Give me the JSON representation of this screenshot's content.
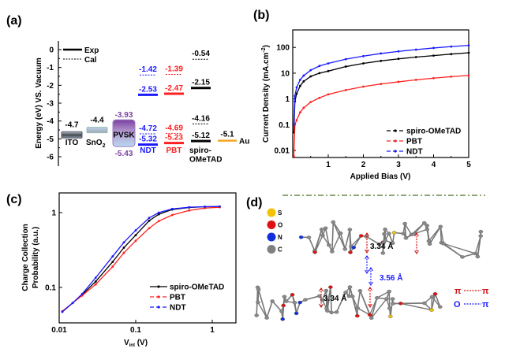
{
  "panels": {
    "a": "(a)",
    "b": "(b)",
    "c": "(c)",
    "d": "(d)"
  },
  "colors": {
    "spiro": "#000000",
    "pbt": "#ff2020",
    "ndt": "#1a1aff",
    "pvsk": "#7a3fa0",
    "au": "#f5a623",
    "purple_text": "#7a3fa0"
  },
  "chart_data": [
    {
      "type": "energy_levels",
      "ylabel": "Energy (eV) VS. Vacuum",
      "ylim": [
        -6.5,
        0.2
      ],
      "yticks": [
        "0",
        "-1",
        "-2",
        "-3",
        "-4",
        "-5",
        "-6"
      ],
      "legend": {
        "exp": "Exp",
        "cal": "Cal"
      },
      "materials": [
        {
          "name": "ITO",
          "levels": [
            {
              "value": -4.7,
              "label": "-4.7",
              "kind": "box"
            }
          ]
        },
        {
          "name": "SnO",
          "sub": "2",
          "levels": [
            {
              "value": -4.4,
              "label": "-4.4",
              "kind": "box"
            }
          ]
        },
        {
          "name": "PVSK",
          "levels": [
            {
              "value": -3.93,
              "label": "-3.93",
              "kind": "box-top"
            },
            {
              "value": -5.43,
              "label": "-5.43",
              "kind": "box-bottom"
            }
          ]
        },
        {
          "name": "NDT",
          "levels": [
            {
              "value": -1.42,
              "label": "-1.42",
              "kind": "cal"
            },
            {
              "value": -2.53,
              "label": "-2.53",
              "kind": "exp"
            },
            {
              "value": -4.72,
              "label": "-4.72",
              "kind": "cal"
            },
            {
              "value": -5.32,
              "label": "-5.32",
              "kind": "exp"
            }
          ]
        },
        {
          "name": "PBT",
          "levels": [
            {
              "value": -1.39,
              "label": "-1.39",
              "kind": "cal"
            },
            {
              "value": -2.47,
              "label": "-2.47",
              "kind": "exp"
            },
            {
              "value": -4.69,
              "label": "-4.69",
              "kind": "cal"
            },
            {
              "value": -5.23,
              "label": "-5.23",
              "kind": "exp"
            }
          ]
        },
        {
          "name": "spiro-",
          "name2": "OMeTAD",
          "levels": [
            {
              "value": -0.54,
              "label": "-0.54",
              "kind": "cal"
            },
            {
              "value": -2.15,
              "label": "-2.15",
              "kind": "exp"
            },
            {
              "value": -4.16,
              "label": "-4.16",
              "kind": "cal"
            },
            {
              "value": -5.12,
              "label": "-5.12",
              "kind": "exp"
            }
          ]
        },
        {
          "name": "Au",
          "levels": [
            {
              "value": -5.1,
              "label": "-5.1",
              "kind": "exp"
            }
          ]
        }
      ]
    },
    {
      "type": "line",
      "xlabel": "Applied Bias (V)",
      "ylabel": "Current Density (mA.cm",
      "ylabel_sup": "-2",
      "ylabel_end": ")",
      "xlim": [
        0,
        5
      ],
      "ylim": [
        0.005,
        500
      ],
      "yscale": "log",
      "xticks": [
        "1",
        "2",
        "3",
        "4",
        "5"
      ],
      "yticks": [
        "0.01",
        "0.1",
        "1",
        "10",
        "100"
      ],
      "legend_position": "bottom-right",
      "x": [
        0.02,
        0.05,
        0.1,
        0.2,
        0.3,
        0.5,
        0.75,
        1,
        1.5,
        2,
        2.5,
        3,
        3.5,
        4,
        4.5,
        5
      ],
      "series": [
        {
          "name": "spiro-OMeTAD",
          "key": "spiro",
          "values": [
            0.05,
            0.8,
            1.6,
            3.2,
            4.8,
            7.5,
            10,
            12,
            18,
            24,
            30,
            36,
            42,
            48,
            55,
            62
          ]
        },
        {
          "name": "PBT",
          "key": "pbt",
          "values": [
            0.006,
            0.1,
            0.15,
            0.3,
            0.45,
            0.75,
            1.1,
            1.5,
            2.2,
            3,
            3.8,
            4.6,
            5.5,
            6.4,
            7.3,
            8.2
          ]
        },
        {
          "name": "NDT",
          "key": "ndt",
          "values": [
            0.1,
            1.3,
            2.8,
            5.5,
            8,
            13,
            19,
            24,
            35,
            46,
            58,
            70,
            82,
            95,
            108,
            120
          ]
        }
      ]
    },
    {
      "type": "line",
      "xlabel": "V",
      "xlabel_sub": "int",
      "xlabel_end": " (V)",
      "ylabel": "Charge Collection",
      "ylabel2": "Probability (a.u.)",
      "xscale": "log",
      "yscale": "log",
      "xlim": [
        0.01,
        2
      ],
      "ylim": [
        0.034,
        1.8
      ],
      "xticks": [
        "0.01",
        "0.1",
        "1"
      ],
      "yticks": [
        "0.1",
        "1"
      ],
      "legend_position": "bottom-right",
      "x": [
        0.011,
        0.015,
        0.02,
        0.03,
        0.05,
        0.07,
        0.1,
        0.15,
        0.2,
        0.3,
        0.5,
        0.8,
        1.25
      ],
      "series": [
        {
          "name": "spiro-OMeTAD",
          "key": "spiro",
          "values": [
            0.048,
            0.062,
            0.08,
            0.12,
            0.22,
            0.34,
            0.5,
            0.78,
            0.95,
            1.1,
            1.17,
            1.2,
            1.2
          ]
        },
        {
          "name": "PBT",
          "key": "pbt",
          "values": [
            0.048,
            0.062,
            0.078,
            0.11,
            0.19,
            0.29,
            0.42,
            0.62,
            0.77,
            0.93,
            1.07,
            1.15,
            1.18
          ]
        },
        {
          "name": "NDT",
          "key": "ndt",
          "values": [
            0.047,
            0.062,
            0.082,
            0.135,
            0.26,
            0.4,
            0.58,
            0.85,
            1.0,
            1.12,
            1.18,
            1.2,
            1.21
          ]
        }
      ]
    }
  ],
  "crystal": {
    "atoms": [
      "S",
      "O",
      "N",
      "C"
    ],
    "atom_colors": [
      "#f2c200",
      "#e01010",
      "#1030e0",
      "#808080"
    ],
    "distances": [
      "3.34 Å",
      "3.56 Å",
      "3.34 Å"
    ],
    "legend_pi": {
      "left": "π",
      "right": "π"
    },
    "legend_o": {
      "left": "O",
      "right": "π"
    }
  }
}
